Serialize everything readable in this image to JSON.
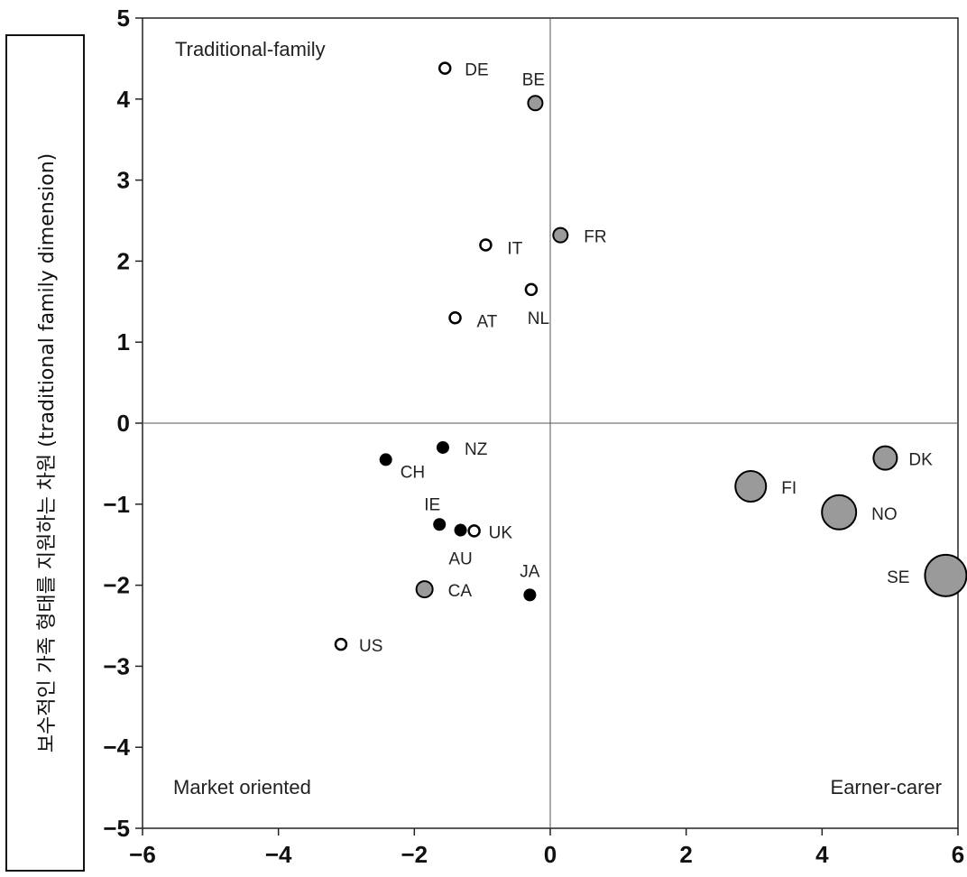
{
  "chart_data": {
    "type": "scatter",
    "ylabel": "보수적인 가족 형태를 지원하는 차원 (traditional family dimension)",
    "xlabel": "",
    "xlim": [
      -6,
      6
    ],
    "ylim": [
      -5,
      5
    ],
    "xticks": [
      -6,
      -4,
      -2,
      0,
      2,
      4,
      6
    ],
    "yticks": [
      -5,
      -4,
      -3,
      -2,
      -1,
      0,
      1,
      2,
      3,
      4,
      5
    ],
    "xtick_labels": [
      "−6",
      "−4",
      "−2",
      "0",
      "2",
      "4",
      "6"
    ],
    "ytick_labels": [
      "−5",
      "−4",
      "−3",
      "−2",
      "−1",
      "0",
      "1",
      "2",
      "3",
      "4",
      "5"
    ],
    "quadrant_labels": {
      "top_left": "Traditional-family",
      "bottom_left": "Market oriented",
      "bottom_right": "Earner-carer"
    },
    "points": [
      {
        "label": "DE",
        "x": -1.55,
        "y": 4.38,
        "marker": "open",
        "size": 6
      },
      {
        "label": "BE",
        "x": -0.22,
        "y": 3.95,
        "marker": "gray",
        "size": 8
      },
      {
        "label": "FR",
        "x": 0.15,
        "y": 2.32,
        "marker": "gray",
        "size": 8
      },
      {
        "label": "IT",
        "x": -0.95,
        "y": 2.2,
        "marker": "open",
        "size": 6
      },
      {
        "label": "NL",
        "x": -0.28,
        "y": 1.65,
        "marker": "open",
        "size": 6
      },
      {
        "label": "AT",
        "x": -1.4,
        "y": 1.3,
        "marker": "open",
        "size": 6
      },
      {
        "label": "NZ",
        "x": -1.58,
        "y": -0.3,
        "marker": "black",
        "size": 6
      },
      {
        "label": "CH",
        "x": -2.42,
        "y": -0.45,
        "marker": "black",
        "size": 6
      },
      {
        "label": "IE",
        "x": -1.63,
        "y": -1.25,
        "marker": "black",
        "size": 6
      },
      {
        "label": "AU",
        "x": -1.32,
        "y": -1.32,
        "marker": "black",
        "size": 6
      },
      {
        "label": "UK",
        "x": -1.12,
        "y": -1.33,
        "marker": "open",
        "size": 6
      },
      {
        "label": "CA",
        "x": -1.85,
        "y": -2.05,
        "marker": "gray",
        "size": 9
      },
      {
        "label": "JA",
        "x": -0.3,
        "y": -2.12,
        "marker": "black",
        "size": 6
      },
      {
        "label": "US",
        "x": -3.08,
        "y": -2.73,
        "marker": "open",
        "size": 6
      },
      {
        "label": "DK",
        "x": 4.93,
        "y": -0.43,
        "marker": "gray",
        "size": 13
      },
      {
        "label": "FI",
        "x": 2.95,
        "y": -0.78,
        "marker": "gray",
        "size": 17
      },
      {
        "label": "NO",
        "x": 4.25,
        "y": -1.1,
        "marker": "gray",
        "size": 19
      },
      {
        "label": "SE",
        "x": 5.82,
        "y": -1.88,
        "marker": "gray",
        "size": 23
      }
    ],
    "colors": {
      "gray_fill": "#9a9a9a",
      "black_fill": "#000000",
      "open_fill": "#ffffff",
      "stroke": "#000000",
      "axis": "#555555"
    }
  }
}
